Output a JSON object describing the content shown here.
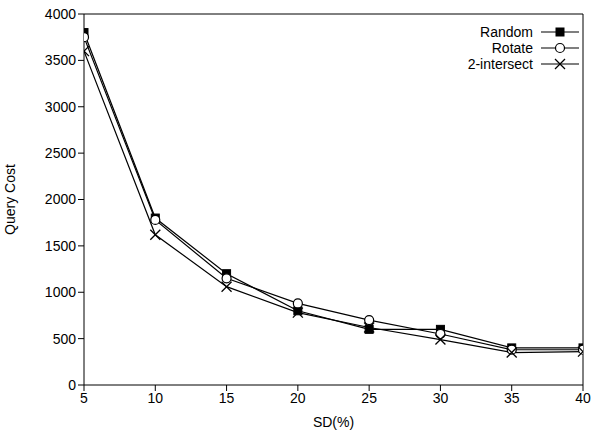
{
  "chart_data": {
    "type": "line",
    "xlabel": "SD(%)",
    "ylabel": "Query Cost",
    "x": [
      5,
      10,
      15,
      20,
      25,
      30,
      35,
      40
    ],
    "xlim": [
      5,
      40
    ],
    "xticks": [
      5,
      10,
      15,
      20,
      25,
      30,
      35,
      40
    ],
    "ylim": [
      0,
      4000
    ],
    "yticks": [
      0,
      500,
      1000,
      1500,
      2000,
      2500,
      3000,
      3500,
      4000
    ],
    "grid": false,
    "legend": "upper right",
    "series": [
      {
        "name": "Random",
        "color": "#000000",
        "marker": "square",
        "line_style": "solid",
        "values": [
          3800,
          1800,
          1200,
          800,
          600,
          600,
          400,
          400
        ]
      },
      {
        "name": "Rotate",
        "color": "#000000",
        "marker": "circle",
        "line_style": "solid",
        "values": [
          3750,
          1780,
          1150,
          880,
          700,
          550,
          380,
          380
        ]
      },
      {
        "name": "2-intersect",
        "color": "#000000",
        "marker": "x",
        "line_style": "solid",
        "values": [
          3600,
          1620,
          1060,
          780,
          620,
          490,
          350,
          360
        ]
      }
    ]
  }
}
